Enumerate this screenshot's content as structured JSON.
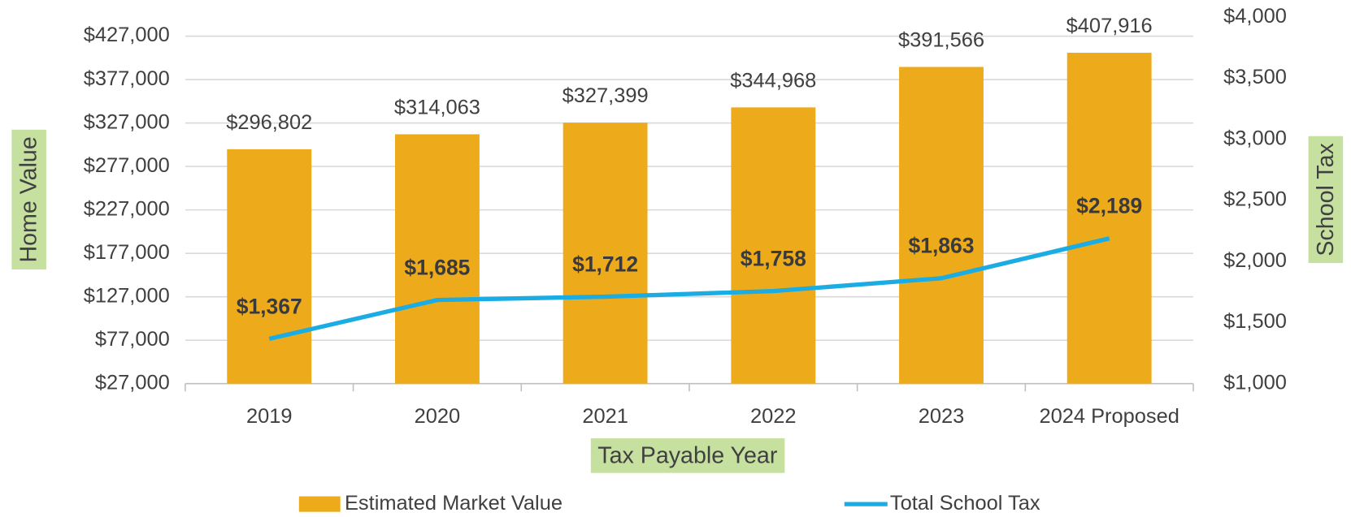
{
  "chart_data": {
    "type": "bar",
    "x_label": "Tax Payable Year",
    "y_label": "Home Value",
    "y2_label": "School Tax",
    "categories": [
      "2019",
      "2020",
      "2021",
      "2022",
      "2023",
      "2024 Proposed"
    ],
    "series": [
      {
        "name": "Estimated Market Value",
        "type": "bar",
        "color": "#EDAB1C",
        "values": [
          296802,
          314063,
          327399,
          344968,
          391566,
          407916
        ],
        "value_labels": [
          "$296,802",
          "$314,063",
          "$327,399",
          "$344,968",
          "$391,566",
          "$407,916"
        ]
      },
      {
        "name": "Total School Tax",
        "type": "line",
        "axis": "y2",
        "color": "#1AACE3",
        "values": [
          1367,
          1685,
          1712,
          1758,
          1863,
          2189
        ],
        "value_labels": [
          "$1,367",
          "$1,685",
          "$1,712",
          "$1,758",
          "$1,863",
          "$2,189"
        ]
      }
    ],
    "ylim": [
      27000,
      448800
    ],
    "yticks": [
      {
        "value": 27000,
        "label": "$27,000"
      },
      {
        "value": 77000,
        "label": "$77,000"
      },
      {
        "value": 127000,
        "label": "$127,000"
      },
      {
        "value": 177000,
        "label": "$177,000"
      },
      {
        "value": 227000,
        "label": "$227,000"
      },
      {
        "value": 277000,
        "label": "$277,000"
      },
      {
        "value": 327000,
        "label": "$327,000"
      },
      {
        "value": 377000,
        "label": "$377,000"
      },
      {
        "value": 427000,
        "label": "$427,000"
      }
    ],
    "y2lim": [
      1000,
      4000
    ],
    "y2ticks": [
      {
        "value": 1000,
        "label": "$1,000"
      },
      {
        "value": 1500,
        "label": "$1,500"
      },
      {
        "value": 2000,
        "label": "$2,000"
      },
      {
        "value": 2500,
        "label": "$2,500"
      },
      {
        "value": 3000,
        "label": "$3,000"
      },
      {
        "value": 3500,
        "label": "$3,500"
      },
      {
        "value": 4000,
        "label": "$4,000"
      }
    ],
    "grid": true,
    "legend": "bottom"
  }
}
